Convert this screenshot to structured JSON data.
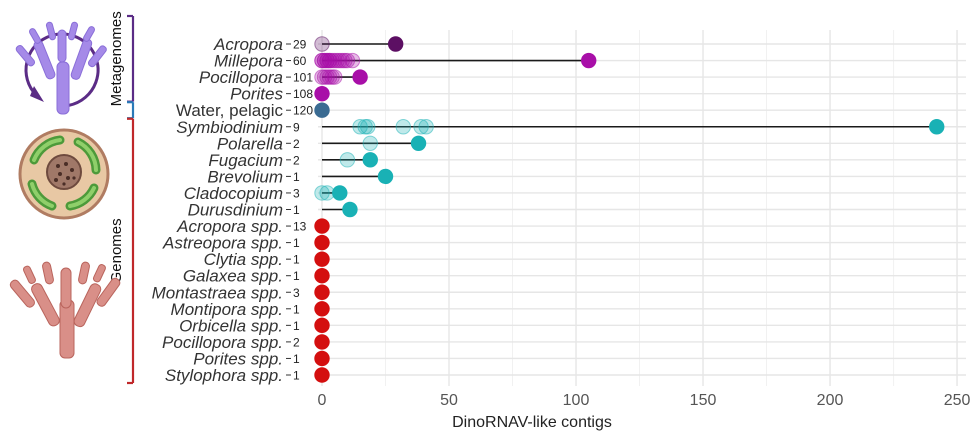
{
  "chart_data": {
    "type": "scatter",
    "xlabel": "DinoRNAV-like contigs",
    "xlim": [
      0,
      255
    ],
    "xticks": [
      0,
      50,
      100,
      150,
      200,
      250
    ],
    "grid": true,
    "groups": [
      {
        "label": "Metagenomes",
        "color": "#5b2c86",
        "range": [
          0,
          4
        ]
      },
      {
        "label": "",
        "color": "#2a7ab8",
        "range": [
          4,
          4
        ]
      },
      {
        "label": "Genomes",
        "color": "#c0282a",
        "range": [
          5,
          20
        ]
      }
    ],
    "categories": [
      {
        "label": "Acropora",
        "italic": true,
        "count": "29",
        "color": "#5c0f63",
        "points": [
          0,
          29
        ]
      },
      {
        "label": "Millepora",
        "italic": true,
        "count": "60",
        "color": "#a80fa8",
        "points": [
          0,
          0,
          1,
          1,
          2,
          2,
          3,
          3,
          4,
          5,
          6,
          7,
          8,
          9,
          10,
          12,
          105
        ]
      },
      {
        "label": "Pocillopora",
        "italic": true,
        "count": "101",
        "color": "#a80fa8",
        "points": [
          0,
          1,
          2,
          3,
          4,
          5,
          15
        ]
      },
      {
        "label": "Porites",
        "italic": true,
        "count": "108",
        "color": "#a80fa8",
        "points": [
          0
        ]
      },
      {
        "label": "Water, pelagic",
        "italic": false,
        "count": "120",
        "color": "#3a6b92",
        "points": [
          0
        ]
      },
      {
        "label": "Symbiodinium",
        "italic": true,
        "count": "9",
        "color": "#19b1b5",
        "points": [
          15,
          17,
          18,
          32,
          39,
          41,
          242
        ]
      },
      {
        "label": "Polarella",
        "italic": true,
        "count": "2",
        "color": "#19b1b5",
        "points": [
          19,
          38
        ]
      },
      {
        "label": "Fugacium",
        "italic": true,
        "count": "2",
        "color": "#19b1b5",
        "points": [
          10,
          19
        ]
      },
      {
        "label": "Brevolium",
        "italic": true,
        "count": "1",
        "color": "#19b1b5",
        "points": [
          25
        ]
      },
      {
        "label": "Cladocopium",
        "italic": true,
        "count": "3",
        "color": "#19b1b5",
        "points": [
          0,
          2,
          7
        ]
      },
      {
        "label": "Durusdinium",
        "italic": true,
        "count": "1",
        "color": "#19b1b5",
        "points": [
          11
        ]
      },
      {
        "label": "Acropora spp.",
        "italic": true,
        "count": "13",
        "color": "#d40f0f",
        "points": [
          0
        ]
      },
      {
        "label": "Astreopora spp.",
        "italic": true,
        "count": "1",
        "color": "#d40f0f",
        "points": [
          0
        ]
      },
      {
        "label": "Clytia spp.",
        "italic": true,
        "count": "1",
        "color": "#d40f0f",
        "points": [
          0
        ]
      },
      {
        "label": "Galaxea spp.",
        "italic": true,
        "count": "1",
        "color": "#d40f0f",
        "points": [
          0
        ]
      },
      {
        "label": "Montastraea spp.",
        "italic": true,
        "count": "3",
        "color": "#d40f0f",
        "points": [
          0
        ]
      },
      {
        "label": "Montipora spp.",
        "italic": true,
        "count": "1",
        "color": "#d40f0f",
        "points": [
          0
        ]
      },
      {
        "label": "Orbicella spp.",
        "italic": true,
        "count": "1",
        "color": "#d40f0f",
        "points": [
          0
        ]
      },
      {
        "label": "Pocillopora spp.",
        "italic": true,
        "count": "2",
        "color": "#d40f0f",
        "points": [
          0
        ]
      },
      {
        "label": "Porites spp.",
        "italic": true,
        "count": "1",
        "color": "#d40f0f",
        "points": [
          0
        ]
      },
      {
        "label": "Stylophora spp.",
        "italic": true,
        "count": "1",
        "color": "#d40f0f",
        "points": [
          0
        ]
      }
    ]
  },
  "icons": {
    "metagenome": "coral-recycle-icon",
    "symbiont": "algal-cell-icon",
    "genome": "coral-branch-icon"
  }
}
